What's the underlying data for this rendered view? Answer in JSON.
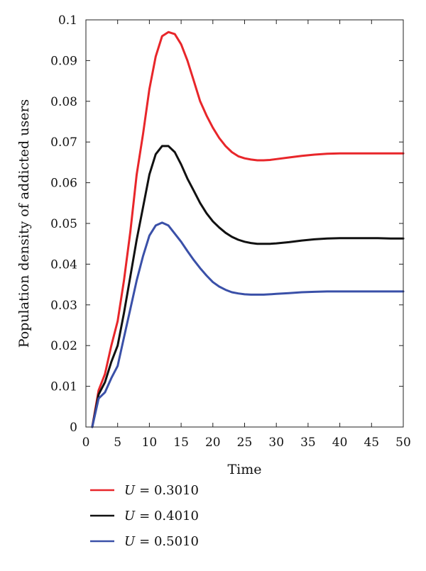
{
  "chart_data": {
    "type": "line",
    "title": "",
    "xlabel": "Time",
    "ylabel": "Population density of addicted users",
    "xlim": [
      0,
      50
    ],
    "ylim": [
      0,
      0.1
    ],
    "xticks": [
      0,
      5,
      10,
      15,
      20,
      25,
      30,
      35,
      40,
      45,
      50
    ],
    "xtick_labels": [
      "0",
      "5",
      "10",
      "15",
      "20",
      "25",
      "30",
      "35",
      "40",
      "45",
      "50"
    ],
    "yticks": [
      0,
      0.01,
      0.02,
      0.03,
      0.04,
      0.05,
      0.06,
      0.07,
      0.08,
      0.09,
      0.1
    ],
    "ytick_labels": [
      "0",
      "0.01",
      "0.02",
      "0.03",
      "0.04",
      "0.05",
      "0.06",
      "0.07",
      "0.08",
      "0.09",
      "0.1"
    ],
    "grid": false,
    "legend_position": "below",
    "series": [
      {
        "name": "U = 0.3010",
        "legend_var": "U",
        "legend_value": "= 0.3010",
        "color": "#e8262a",
        "x": [
          1,
          2,
          3,
          4,
          5,
          6,
          7,
          8,
          9,
          10,
          11,
          12,
          13,
          14,
          15,
          16,
          17,
          18,
          19,
          20,
          21,
          22,
          23,
          24,
          25,
          26,
          27,
          28,
          29,
          30,
          32,
          34,
          36,
          38,
          40,
          42,
          44,
          46,
          48,
          50
        ],
        "y": [
          0,
          0.009,
          0.013,
          0.02,
          0.026,
          0.036,
          0.048,
          0.062,
          0.072,
          0.083,
          0.091,
          0.096,
          0.097,
          0.0965,
          0.094,
          0.09,
          0.085,
          0.08,
          0.0765,
          0.0735,
          0.071,
          0.069,
          0.0675,
          0.0665,
          0.066,
          0.0657,
          0.0655,
          0.0655,
          0.0656,
          0.0658,
          0.0662,
          0.0666,
          0.0669,
          0.0671,
          0.0672,
          0.0672,
          0.0672,
          0.0672,
          0.0672,
          0.0672
        ]
      },
      {
        "name": "U = 0.4010",
        "legend_var": "U",
        "legend_value": "= 0.4010",
        "color": "#111111",
        "x": [
          1,
          2,
          3,
          4,
          5,
          6,
          7,
          8,
          9,
          10,
          11,
          12,
          13,
          14,
          15,
          16,
          17,
          18,
          19,
          20,
          21,
          22,
          23,
          24,
          25,
          26,
          27,
          28,
          29,
          30,
          32,
          34,
          36,
          38,
          40,
          42,
          44,
          46,
          48,
          50
        ],
        "y": [
          0,
          0.008,
          0.011,
          0.016,
          0.02,
          0.028,
          0.037,
          0.046,
          0.054,
          0.062,
          0.067,
          0.069,
          0.069,
          0.0675,
          0.0645,
          0.061,
          0.058,
          0.055,
          0.0525,
          0.0505,
          0.049,
          0.0477,
          0.0467,
          0.046,
          0.0455,
          0.0452,
          0.045,
          0.045,
          0.045,
          0.0451,
          0.0454,
          0.0458,
          0.0461,
          0.0463,
          0.0464,
          0.0464,
          0.0464,
          0.0464,
          0.0463,
          0.0463
        ]
      },
      {
        "name": "U = 0.5010",
        "legend_var": "U",
        "legend_value": "= 0.5010",
        "color": "#3a50a8",
        "x": [
          1,
          2,
          3,
          4,
          5,
          6,
          7,
          8,
          9,
          10,
          11,
          12,
          13,
          14,
          15,
          16,
          17,
          18,
          19,
          20,
          21,
          22,
          23,
          24,
          25,
          26,
          27,
          28,
          29,
          30,
          32,
          34,
          36,
          38,
          40,
          42,
          44,
          46,
          48,
          50
        ],
        "y": [
          0,
          0.007,
          0.0085,
          0.012,
          0.015,
          0.022,
          0.029,
          0.036,
          0.042,
          0.047,
          0.0495,
          0.0502,
          0.0495,
          0.0475,
          0.0455,
          0.0432,
          0.041,
          0.039,
          0.0372,
          0.0356,
          0.0345,
          0.0337,
          0.0331,
          0.0328,
          0.0326,
          0.0325,
          0.0325,
          0.0325,
          0.0326,
          0.0327,
          0.0329,
          0.0331,
          0.0332,
          0.0333,
          0.0333,
          0.0333,
          0.0333,
          0.0333,
          0.0333,
          0.0333
        ]
      }
    ]
  }
}
